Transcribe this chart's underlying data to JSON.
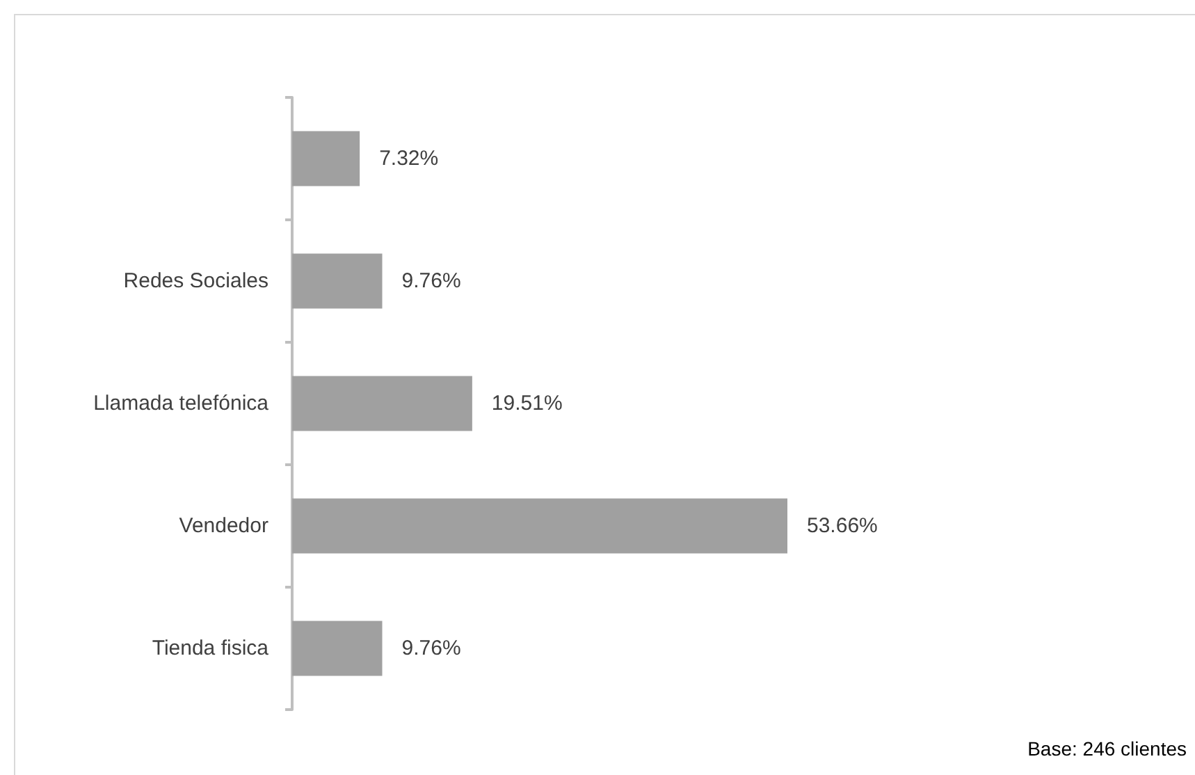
{
  "chart_data": {
    "type": "bar",
    "orientation": "horizontal",
    "categories": [
      null,
      "Redes Sociales",
      "Llamada telefónica",
      "Vendedor",
      "Tienda fisica"
    ],
    "values": [
      7.32,
      9.76,
      19.51,
      53.66,
      9.76
    ],
    "value_labels": [
      "7.32%",
      "9.76%",
      "19.51%",
      "53.66%",
      "9.76%"
    ],
    "color": "#a0a0a0",
    "annotations": [
      "Base: 246 clientes"
    ]
  }
}
